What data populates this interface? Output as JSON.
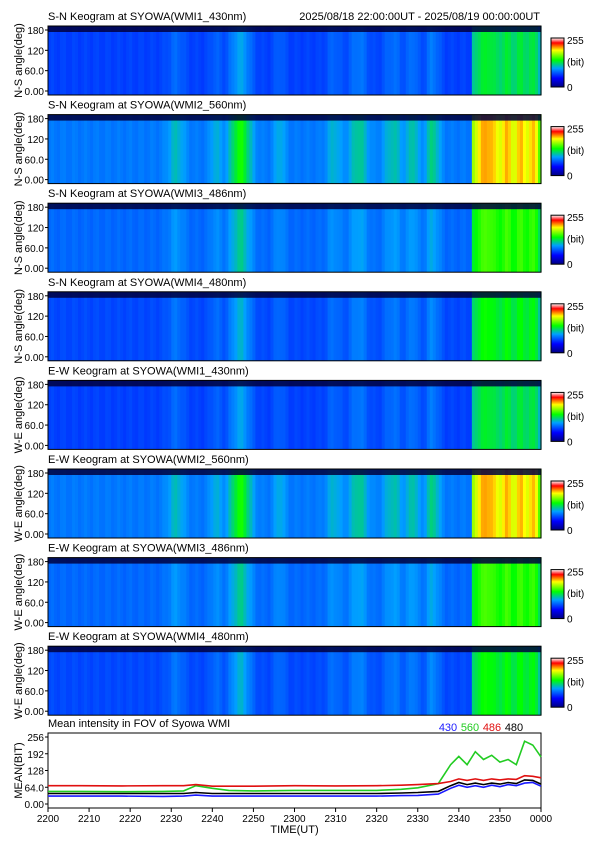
{
  "header": {
    "time_range": "2025/08/18 22:00:00UT - 2025/08/19 00:00:00UT"
  },
  "colorbar": {
    "max_label": "255",
    "unit_label": "(bit)",
    "min_label": "0"
  },
  "keogram_y_ticks": [
    "180",
    "120",
    "60.0",
    "0.00"
  ],
  "panels": [
    {
      "title": "S-N Keogram at SYOWA(WMI1_430nm)",
      "ylabel": "N-S angle(deg)",
      "gain": 0.55,
      "base": 0.26
    },
    {
      "title": "S-N Keogram at SYOWA(WMI2_560nm)",
      "ylabel": "N-S angle(deg)",
      "gain": 1.0,
      "base": 0.33
    },
    {
      "title": "S-N Keogram at SYOWA(WMI3_486nm)",
      "ylabel": "N-S angle(deg)",
      "gain": 0.62,
      "base": 0.31
    },
    {
      "title": "S-N Keogram at SYOWA(WMI4_480nm)",
      "ylabel": "N-S angle(deg)",
      "gain": 0.6,
      "base": 0.27
    },
    {
      "title": "E-W Keogram at SYOWA(WMI1_430nm)",
      "ylabel": "W-E angle(deg)",
      "gain": 0.55,
      "base": 0.26
    },
    {
      "title": "E-W Keogram at SYOWA(WMI2_560nm)",
      "ylabel": "W-E angle(deg)",
      "gain": 1.0,
      "base": 0.33
    },
    {
      "title": "E-W Keogram at SYOWA(WMI3_486nm)",
      "ylabel": "W-E angle(deg)",
      "gain": 0.62,
      "base": 0.31
    },
    {
      "title": "E-W Keogram at SYOWA(WMI4_480nm)",
      "ylabel": "W-E angle(deg)",
      "gain": 0.6,
      "base": 0.27
    }
  ],
  "chart_data": {
    "type": "line",
    "title": "Mean intensity in FOV of Syowa WMI",
    "xlabel": "TIME(UT)",
    "ylabel": "MEAN(BIT)",
    "ylim": [
      0,
      256
    ],
    "xlim": [
      0,
      120
    ],
    "x_tick_labels": [
      "2200",
      "2210",
      "2220",
      "2230",
      "2240",
      "2250",
      "2300",
      "2310",
      "2320",
      "2330",
      "2340",
      "2350",
      "0000"
    ],
    "y_tick_labels": [
      "256",
      "192",
      "128",
      "64.0",
      "0.00"
    ],
    "y_tick_values": [
      256,
      192,
      128,
      64,
      0
    ],
    "x_minutes": [
      0,
      8,
      18,
      28,
      33,
      36,
      40,
      44,
      50,
      60,
      70,
      80,
      86,
      90,
      95,
      98,
      100,
      102,
      104,
      106,
      108,
      110,
      112,
      114,
      116,
      118,
      120
    ],
    "series": [
      {
        "name": "430",
        "color": "#1a1aff",
        "values": [
          30,
          30,
          30,
          29,
          30,
          34,
          30,
          30,
          30,
          30,
          30,
          30,
          32,
          33,
          38,
          60,
          72,
          64,
          70,
          64,
          72,
          66,
          74,
          70,
          80,
          82,
          68
        ]
      },
      {
        "name": "560",
        "color": "#22cc22",
        "values": [
          48,
          48,
          47,
          48,
          50,
          70,
          60,
          52,
          50,
          52,
          52,
          52,
          56,
          62,
          78,
          150,
          182,
          150,
          200,
          170,
          186,
          160,
          170,
          150,
          240,
          225,
          180
        ]
      },
      {
        "name": "486",
        "color": "#e01010",
        "values": [
          70,
          70,
          69,
          70,
          70,
          74,
          68,
          68,
          68,
          70,
          69,
          70,
          72,
          74,
          78,
          86,
          96,
          90,
          96,
          90,
          96,
          92,
          96,
          94,
          108,
          106,
          100
        ]
      },
      {
        "name": "480",
        "color": "#000000",
        "values": [
          40,
          40,
          40,
          40,
          40,
          44,
          40,
          40,
          40,
          40,
          40,
          40,
          42,
          44,
          48,
          70,
          82,
          74,
          80,
          74,
          80,
          76,
          82,
          78,
          92,
          90,
          76
        ]
      }
    ]
  }
}
